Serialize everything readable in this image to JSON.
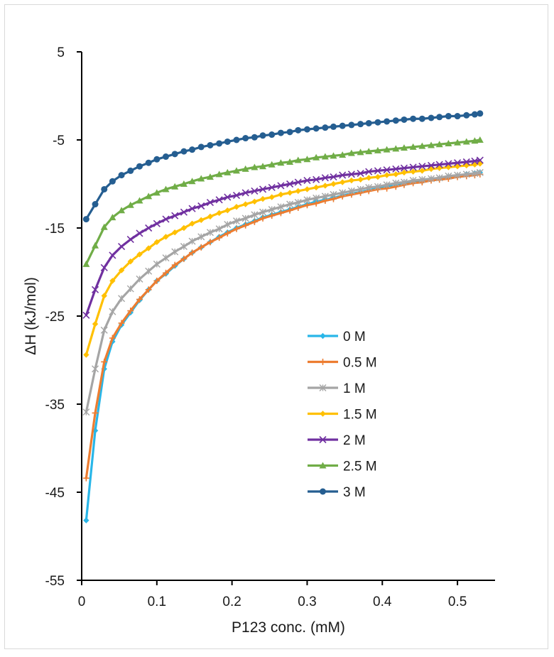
{
  "chart_data": {
    "type": "line",
    "title": "",
    "xlabel": "P123 conc. (mM)",
    "ylabel": "ΔH (kJ/mol)",
    "xlim": [
      0,
      0.55
    ],
    "ylim": [
      -55,
      5
    ],
    "xticks": [
      0,
      0.1,
      0.2,
      0.3,
      0.4,
      0.5
    ],
    "xtick_labels": [
      "0",
      "0.1",
      "0.2",
      "0.3",
      "0.4",
      "0.5"
    ],
    "yticks": [
      5,
      -5,
      -15,
      -25,
      -35,
      -45,
      -55
    ],
    "ytick_labels": [
      "5",
      "-5",
      "-15",
      "-25",
      "-35",
      "-45",
      "-55"
    ],
    "grid": false,
    "legend_position": "bottom-right",
    "x": [
      0.006,
      0.018,
      0.03,
      0.041,
      0.053,
      0.065,
      0.077,
      0.089,
      0.1,
      0.112,
      0.124,
      0.136,
      0.147,
      0.159,
      0.171,
      0.183,
      0.194,
      0.206,
      0.218,
      0.23,
      0.241,
      0.253,
      0.265,
      0.277,
      0.288,
      0.3,
      0.312,
      0.324,
      0.335,
      0.347,
      0.359,
      0.371,
      0.382,
      0.394,
      0.406,
      0.418,
      0.429,
      0.441,
      0.453,
      0.465,
      0.476,
      0.488,
      0.5,
      0.512,
      0.523,
      0.53
    ],
    "series": [
      {
        "name": "0 M",
        "color": "#29b6e8",
        "marker": "diamond",
        "values": [
          -48.2,
          -38.0,
          -31.0,
          -27.9,
          -26.0,
          -24.6,
          -23.2,
          -22.0,
          -21.0,
          -20.2,
          -19.3,
          -18.5,
          -17.8,
          -17.2,
          -16.6,
          -16.0,
          -15.5,
          -15.0,
          -14.6,
          -14.2,
          -13.8,
          -13.5,
          -13.2,
          -12.9,
          -12.6,
          -12.3,
          -12.0,
          -11.8,
          -11.6,
          -11.3,
          -11.1,
          -10.9,
          -10.7,
          -10.5,
          -10.3,
          -10.2,
          -10.0,
          -9.8,
          -9.7,
          -9.5,
          -9.4,
          -9.2,
          -9.1,
          -8.9,
          -8.8,
          -8.7
        ]
      },
      {
        "name": "0.5 M",
        "color": "#ed7d31",
        "marker": "plus",
        "values": [
          -43.4,
          -36.0,
          -30.2,
          -27.5,
          -25.8,
          -24.4,
          -23.1,
          -22.0,
          -21.0,
          -20.1,
          -19.2,
          -18.5,
          -17.8,
          -17.2,
          -16.6,
          -16.1,
          -15.6,
          -15.1,
          -14.7,
          -14.3,
          -13.9,
          -13.6,
          -13.3,
          -13.0,
          -12.7,
          -12.4,
          -12.2,
          -11.9,
          -11.7,
          -11.4,
          -11.2,
          -11.0,
          -10.8,
          -10.6,
          -10.5,
          -10.3,
          -10.1,
          -9.9,
          -9.8,
          -9.6,
          -9.5,
          -9.4,
          -9.2,
          -9.1,
          -9.0,
          -8.9
        ]
      },
      {
        "name": "1 M",
        "color": "#a5a5a5",
        "marker": "asterisk",
        "values": [
          -35.9,
          -31.0,
          -26.6,
          -24.5,
          -23.0,
          -21.9,
          -20.8,
          -19.9,
          -19.1,
          -18.4,
          -17.7,
          -17.1,
          -16.5,
          -16.0,
          -15.5,
          -15.1,
          -14.6,
          -14.2,
          -13.9,
          -13.5,
          -13.2,
          -12.9,
          -12.6,
          -12.3,
          -12.1,
          -11.8,
          -11.6,
          -11.4,
          -11.2,
          -11.0,
          -10.8,
          -10.6,
          -10.4,
          -10.3,
          -10.1,
          -9.9,
          -9.8,
          -9.6,
          -9.5,
          -9.4,
          -9.3,
          -9.1,
          -9.0,
          -8.9,
          -8.8,
          -8.7
        ]
      },
      {
        "name": "1.5 M",
        "color": "#ffc000",
        "marker": "diamond",
        "values": [
          -29.4,
          -25.9,
          -22.7,
          -21.0,
          -19.8,
          -18.8,
          -18.0,
          -17.3,
          -16.6,
          -16.0,
          -15.5,
          -15.0,
          -14.5,
          -14.1,
          -13.7,
          -13.3,
          -13.0,
          -12.6,
          -12.3,
          -12.0,
          -11.7,
          -11.5,
          -11.2,
          -11.0,
          -10.8,
          -10.6,
          -10.4,
          -10.2,
          -10.0,
          -9.8,
          -9.6,
          -9.5,
          -9.3,
          -9.2,
          -9.0,
          -8.9,
          -8.7,
          -8.6,
          -8.5,
          -8.3,
          -8.2,
          -8.1,
          -8.0,
          -7.9,
          -7.8,
          -7.7
        ]
      },
      {
        "name": "2 M",
        "color": "#7030a0",
        "marker": "x",
        "values": [
          -24.9,
          -22.0,
          -19.5,
          -18.1,
          -17.1,
          -16.3,
          -15.6,
          -15.0,
          -14.5,
          -14.0,
          -13.6,
          -13.2,
          -12.8,
          -12.5,
          -12.1,
          -11.8,
          -11.5,
          -11.3,
          -11.0,
          -10.8,
          -10.6,
          -10.4,
          -10.2,
          -10.0,
          -9.8,
          -9.6,
          -9.5,
          -9.3,
          -9.2,
          -9.0,
          -8.9,
          -8.8,
          -8.6,
          -8.5,
          -8.4,
          -8.3,
          -8.2,
          -8.1,
          -8.0,
          -7.9,
          -7.8,
          -7.7,
          -7.6,
          -7.5,
          -7.4,
          -7.3
        ]
      },
      {
        "name": "2.5 M",
        "color": "#70ad47",
        "marker": "triangle",
        "values": [
          -19.1,
          -17.0,
          -14.9,
          -13.8,
          -13.0,
          -12.4,
          -11.9,
          -11.4,
          -11.0,
          -10.6,
          -10.3,
          -10.0,
          -9.7,
          -9.4,
          -9.2,
          -8.9,
          -8.7,
          -8.5,
          -8.3,
          -8.1,
          -8.0,
          -7.8,
          -7.6,
          -7.5,
          -7.3,
          -7.2,
          -7.0,
          -6.9,
          -6.8,
          -6.7,
          -6.5,
          -6.4,
          -6.3,
          -6.2,
          -6.1,
          -6.0,
          -5.9,
          -5.8,
          -5.7,
          -5.6,
          -5.5,
          -5.4,
          -5.3,
          -5.2,
          -5.1,
          -5.0
        ]
      },
      {
        "name": "3 M",
        "color": "#255e91",
        "marker": "circle",
        "values": [
          -14.0,
          -12.3,
          -10.6,
          -9.7,
          -9.0,
          -8.5,
          -8.0,
          -7.6,
          -7.2,
          -6.9,
          -6.6,
          -6.3,
          -6.1,
          -5.8,
          -5.6,
          -5.4,
          -5.2,
          -5.0,
          -4.8,
          -4.7,
          -4.5,
          -4.4,
          -4.2,
          -4.1,
          -3.9,
          -3.8,
          -3.7,
          -3.6,
          -3.5,
          -3.4,
          -3.3,
          -3.2,
          -3.1,
          -3.0,
          -2.9,
          -2.8,
          -2.7,
          -2.6,
          -2.6,
          -2.5,
          -2.4,
          -2.3,
          -2.3,
          -2.2,
          -2.1,
          -2.0
        ]
      }
    ]
  }
}
